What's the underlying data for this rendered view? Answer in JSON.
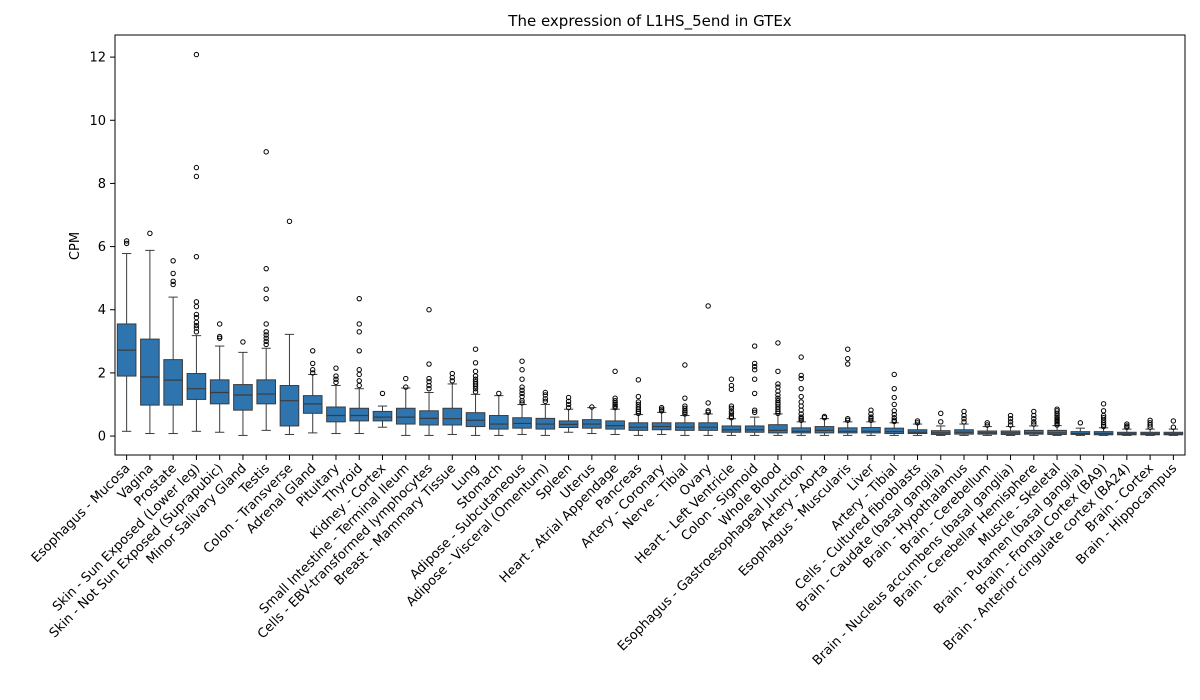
{
  "chart_data": {
    "type": "box",
    "title": "The expression of L1HS_5end in GTEx",
    "xlabel": "",
    "ylabel": "CPM",
    "ylim": [
      -0.6,
      12.7
    ],
    "yticks": [
      0,
      2,
      4,
      6,
      8,
      10,
      12
    ],
    "grid": false,
    "legend": "none",
    "box_color": "#2e75b0",
    "categories": [
      "Esophagus - Mucosa",
      "Vagina",
      "Prostate",
      "Skin - Sun Exposed (Lower leg)",
      "Skin - Not Sun Exposed (Suprapubic)",
      "Minor Salivary Gland",
      "Testis",
      "Colon - Transverse",
      "Adrenal Gland",
      "Pituitary",
      "Thyroid",
      "Kidney - Cortex",
      "Small Intestine - Terminal Ileum",
      "Cells - EBV-transformed lymphocytes",
      "Breast - Mammary Tissue",
      "Lung",
      "Stomach",
      "Adipose - Subcutaneous",
      "Adipose - Visceral (Omentum)",
      "Spleen",
      "Uterus",
      "Heart - Atrial Appendage",
      "Pancreas",
      "Artery - Coronary",
      "Nerve - Tibial",
      "Ovary",
      "Heart - Left Ventricle",
      "Colon - Sigmoid",
      "Whole Blood",
      "Esophagus - Gastroesophageal Junction",
      "Artery - Aorta",
      "Esophagus - Muscularis",
      "Liver",
      "Artery - Tibial",
      "Cells - Cultured fibroblasts",
      "Brain - Caudate (basal ganglia)",
      "Brain - Hypothalamus",
      "Brain - Cerebellum",
      "Brain - Nucleus accumbens (basal ganglia)",
      "Brain - Cerebellar Hemisphere",
      "Muscle - Skeletal",
      "Brain - Putamen (basal ganglia)",
      "Brain - Frontal Cortex (BA9)",
      "Brain - Anterior cingulate cortex (BA24)",
      "Brain - Cortex",
      "Brain - Hippocampus"
    ],
    "boxes": [
      {
        "whislo": 0.15,
        "q1": 1.9,
        "med": 2.72,
        "q3": 3.55,
        "whishi": 5.78,
        "fliers": [
          6.1,
          6.18
        ]
      },
      {
        "whislo": 0.08,
        "q1": 0.98,
        "med": 1.87,
        "q3": 3.07,
        "whishi": 5.88,
        "fliers": [
          6.42
        ]
      },
      {
        "whislo": 0.08,
        "q1": 0.98,
        "med": 1.77,
        "q3": 2.42,
        "whishi": 4.4,
        "fliers": [
          4.8,
          4.9,
          5.15,
          5.55
        ]
      },
      {
        "whislo": 0.15,
        "q1": 1.16,
        "med": 1.5,
        "q3": 1.98,
        "whishi": 3.18,
        "fliers": [
          3.3,
          3.42,
          3.5,
          3.6,
          3.75,
          3.85,
          4.1,
          4.25,
          5.68,
          8.22,
          8.5,
          12.08
        ]
      },
      {
        "whislo": 0.12,
        "q1": 1.02,
        "med": 1.38,
        "q3": 1.78,
        "whishi": 2.85,
        "fliers": [
          3.1,
          3.15,
          3.55
        ]
      },
      {
        "whislo": 0.02,
        "q1": 0.82,
        "med": 1.3,
        "q3": 1.63,
        "whishi": 2.65,
        "fliers": [
          2.98
        ]
      },
      {
        "whislo": 0.18,
        "q1": 1.02,
        "med": 1.33,
        "q3": 1.78,
        "whishi": 2.78,
        "fliers": [
          2.9,
          3.0,
          3.1,
          3.2,
          3.3,
          3.55,
          4.35,
          4.65,
          5.3,
          9.0
        ]
      },
      {
        "whislo": 0.05,
        "q1": 0.32,
        "med": 1.12,
        "q3": 1.6,
        "whishi": 3.22,
        "fliers": [
          6.8
        ]
      },
      {
        "whislo": 0.1,
        "q1": 0.72,
        "med": 1.02,
        "q3": 1.28,
        "whishi": 1.95,
        "fliers": [
          2.0,
          2.1,
          2.3,
          2.7
        ]
      },
      {
        "whislo": 0.08,
        "q1": 0.45,
        "med": 0.65,
        "q3": 0.92,
        "whishi": 1.6,
        "fliers": [
          1.7,
          1.8,
          1.9,
          2.15
        ]
      },
      {
        "whislo": 0.08,
        "q1": 0.48,
        "med": 0.65,
        "q3": 0.88,
        "whishi": 1.5,
        "fliers": [
          1.6,
          1.75,
          1.95,
          2.1,
          2.7,
          3.3,
          3.55,
          4.35
        ]
      },
      {
        "whislo": 0.28,
        "q1": 0.48,
        "med": 0.6,
        "q3": 0.78,
        "whishi": 0.95,
        "fliers": [
          1.35
        ]
      },
      {
        "whislo": 0.02,
        "q1": 0.38,
        "med": 0.6,
        "q3": 0.88,
        "whishi": 1.52,
        "fliers": [
          1.55,
          1.82
        ]
      },
      {
        "whislo": 0.02,
        "q1": 0.35,
        "med": 0.56,
        "q3": 0.8,
        "whishi": 1.38,
        "fliers": [
          1.5,
          1.6,
          1.72,
          1.82,
          2.28,
          4.0
        ]
      },
      {
        "whislo": 0.05,
        "q1": 0.35,
        "med": 0.55,
        "q3": 0.88,
        "whishi": 1.65,
        "fliers": [
          1.75,
          1.85,
          1.98
        ]
      },
      {
        "whislo": 0.02,
        "q1": 0.3,
        "med": 0.5,
        "q3": 0.74,
        "whishi": 1.32,
        "fliers": [
          1.4,
          1.5,
          1.58,
          1.65,
          1.72,
          1.8,
          1.9,
          2.05,
          2.32,
          2.75
        ]
      },
      {
        "whislo": 0.02,
        "q1": 0.22,
        "med": 0.38,
        "q3": 0.65,
        "whishi": 1.28,
        "fliers": [
          1.35
        ]
      },
      {
        "whislo": 0.05,
        "q1": 0.25,
        "med": 0.4,
        "q3": 0.58,
        "whishi": 1.0,
        "fliers": [
          1.05,
          1.12,
          1.25,
          1.35,
          1.45,
          1.55,
          1.8,
          2.1,
          2.37
        ]
      },
      {
        "whislo": 0.02,
        "q1": 0.22,
        "med": 0.38,
        "q3": 0.56,
        "whishi": 1.0,
        "fliers": [
          1.1,
          1.18,
          1.3,
          1.38
        ]
      },
      {
        "whislo": 0.12,
        "q1": 0.27,
        "med": 0.37,
        "q3": 0.48,
        "whishi": 0.85,
        "fliers": [
          0.9,
          1.0,
          1.1,
          1.22
        ]
      },
      {
        "whislo": 0.08,
        "q1": 0.25,
        "med": 0.38,
        "q3": 0.52,
        "whishi": 0.9,
        "fliers": [
          0.92
        ]
      },
      {
        "whislo": 0.05,
        "q1": 0.22,
        "med": 0.33,
        "q3": 0.48,
        "whishi": 0.85,
        "fliers": [
          0.9,
          0.95,
          1.0,
          1.05,
          1.12,
          1.2,
          2.05
        ]
      },
      {
        "whislo": 0.02,
        "q1": 0.18,
        "med": 0.28,
        "q3": 0.42,
        "whishi": 0.68,
        "fliers": [
          0.72,
          0.78,
          0.85,
          0.92,
          1.0,
          1.08,
          1.25,
          1.78
        ]
      },
      {
        "whislo": 0.05,
        "q1": 0.2,
        "med": 0.3,
        "q3": 0.42,
        "whishi": 0.75,
        "fliers": [
          0.8,
          0.85,
          0.9
        ]
      },
      {
        "whislo": 0.02,
        "q1": 0.18,
        "med": 0.28,
        "q3": 0.42,
        "whishi": 0.65,
        "fliers": [
          0.7,
          0.75,
          0.8,
          0.88,
          0.95,
          1.2,
          2.25
        ]
      },
      {
        "whislo": 0.02,
        "q1": 0.18,
        "med": 0.28,
        "q3": 0.42,
        "whishi": 0.7,
        "fliers": [
          0.75,
          0.8,
          1.05,
          4.12
        ]
      },
      {
        "whislo": 0.02,
        "q1": 0.12,
        "med": 0.2,
        "q3": 0.32,
        "whishi": 0.55,
        "fliers": [
          0.58,
          0.62,
          0.7,
          0.78,
          0.88,
          0.95,
          1.48,
          1.6,
          1.8
        ]
      },
      {
        "whislo": 0.02,
        "q1": 0.12,
        "med": 0.2,
        "q3": 0.32,
        "whishi": 0.6,
        "fliers": [
          0.75,
          0.82,
          1.35,
          1.8,
          2.1,
          2.2,
          2.3,
          2.85
        ]
      },
      {
        "whislo": 0.02,
        "q1": 0.1,
        "med": 0.18,
        "q3": 0.36,
        "whishi": 0.7,
        "fliers": [
          0.72,
          0.78,
          0.85,
          0.92,
          1.0,
          1.05,
          1.12,
          1.2,
          1.3,
          1.42,
          1.55,
          1.65,
          2.05,
          2.95
        ]
      },
      {
        "whislo": 0.02,
        "q1": 0.1,
        "med": 0.15,
        "q3": 0.26,
        "whishi": 0.45,
        "fliers": [
          0.5,
          0.55,
          0.6,
          0.7,
          0.82,
          0.95,
          1.08,
          1.25,
          1.5,
          1.82,
          1.92,
          2.5
        ]
      },
      {
        "whislo": 0.02,
        "q1": 0.1,
        "med": 0.18,
        "q3": 0.3,
        "whishi": 0.55,
        "fliers": [
          0.58,
          0.62
        ]
      },
      {
        "whislo": 0.02,
        "q1": 0.1,
        "med": 0.15,
        "q3": 0.26,
        "whishi": 0.45,
        "fliers": [
          0.5,
          0.55,
          2.28,
          2.45,
          2.75
        ]
      },
      {
        "whislo": 0.02,
        "q1": 0.1,
        "med": 0.15,
        "q3": 0.27,
        "whishi": 0.45,
        "fliers": [
          0.5,
          0.55,
          0.6,
          0.7,
          0.82
        ]
      },
      {
        "whislo": 0.02,
        "q1": 0.08,
        "med": 0.14,
        "q3": 0.25,
        "whishi": 0.42,
        "fliers": [
          0.46,
          0.5,
          0.58,
          0.68,
          0.8,
          1.0,
          1.22,
          1.5,
          1.95
        ]
      },
      {
        "whislo": 0.02,
        "q1": 0.08,
        "med": 0.12,
        "q3": 0.2,
        "whishi": 0.38,
        "fliers": [
          0.42,
          0.48
        ]
      },
      {
        "whislo": 0.02,
        "q1": 0.05,
        "med": 0.1,
        "q3": 0.17,
        "whishi": 0.32,
        "fliers": [
          0.45,
          0.72
        ]
      },
      {
        "whislo": 0.02,
        "q1": 0.06,
        "med": 0.12,
        "q3": 0.2,
        "whishi": 0.38,
        "fliers": [
          0.45,
          0.55,
          0.65,
          0.78
        ]
      },
      {
        "whislo": 0.02,
        "q1": 0.06,
        "med": 0.1,
        "q3": 0.16,
        "whishi": 0.3,
        "fliers": [
          0.35,
          0.42
        ]
      },
      {
        "whislo": 0.02,
        "q1": 0.05,
        "med": 0.1,
        "q3": 0.16,
        "whishi": 0.3,
        "fliers": [
          0.35,
          0.45,
          0.55,
          0.65
        ]
      },
      {
        "whislo": 0.02,
        "q1": 0.06,
        "med": 0.1,
        "q3": 0.18,
        "whishi": 0.32,
        "fliers": [
          0.38,
          0.45,
          0.55,
          0.65,
          0.78
        ]
      },
      {
        "whislo": 0.02,
        "q1": 0.05,
        "med": 0.1,
        "q3": 0.18,
        "whishi": 0.33,
        "fliers": [
          0.35,
          0.4,
          0.45,
          0.5,
          0.55,
          0.6,
          0.65,
          0.72,
          0.8,
          0.85
        ]
      },
      {
        "whislo": 0.02,
        "q1": 0.05,
        "med": 0.08,
        "q3": 0.14,
        "whishi": 0.25,
        "fliers": [
          0.42
        ]
      },
      {
        "whislo": 0.02,
        "q1": 0.04,
        "med": 0.08,
        "q3": 0.14,
        "whishi": 0.26,
        "fliers": [
          0.3,
          0.35,
          0.42,
          0.5,
          0.58,
          0.65,
          0.8,
          1.02
        ]
      },
      {
        "whislo": 0.02,
        "q1": 0.04,
        "med": 0.07,
        "q3": 0.12,
        "whishi": 0.22,
        "fliers": [
          0.28,
          0.32,
          0.38
        ]
      },
      {
        "whislo": 0.02,
        "q1": 0.04,
        "med": 0.07,
        "q3": 0.12,
        "whishi": 0.22,
        "fliers": [
          0.28,
          0.35,
          0.42,
          0.5
        ]
      },
      {
        "whislo": 0.02,
        "q1": 0.04,
        "med": 0.07,
        "q3": 0.12,
        "whishi": 0.22,
        "fliers": [
          0.28,
          0.48
        ]
      }
    ]
  }
}
